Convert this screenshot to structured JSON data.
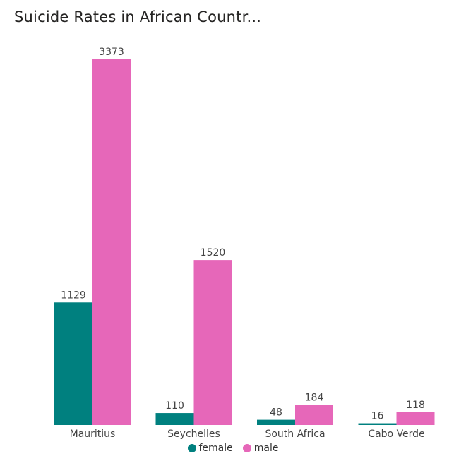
{
  "chart_data": {
    "type": "bar",
    "title": "Suicide Rates in African Countr...",
    "categories": [
      "Mauritius",
      "Seychelles",
      "South Africa",
      "Cabo Verde"
    ],
    "series": [
      {
        "name": "female",
        "color": "#00807f",
        "values": [
          1129,
          110,
          48,
          16
        ]
      },
      {
        "name": "male",
        "color": "#e667b9",
        "values": [
          3373,
          1520,
          184,
          118
        ]
      }
    ],
    "ylim": [
      0,
      3373
    ],
    "grid": false,
    "legend_position": "bottom"
  }
}
